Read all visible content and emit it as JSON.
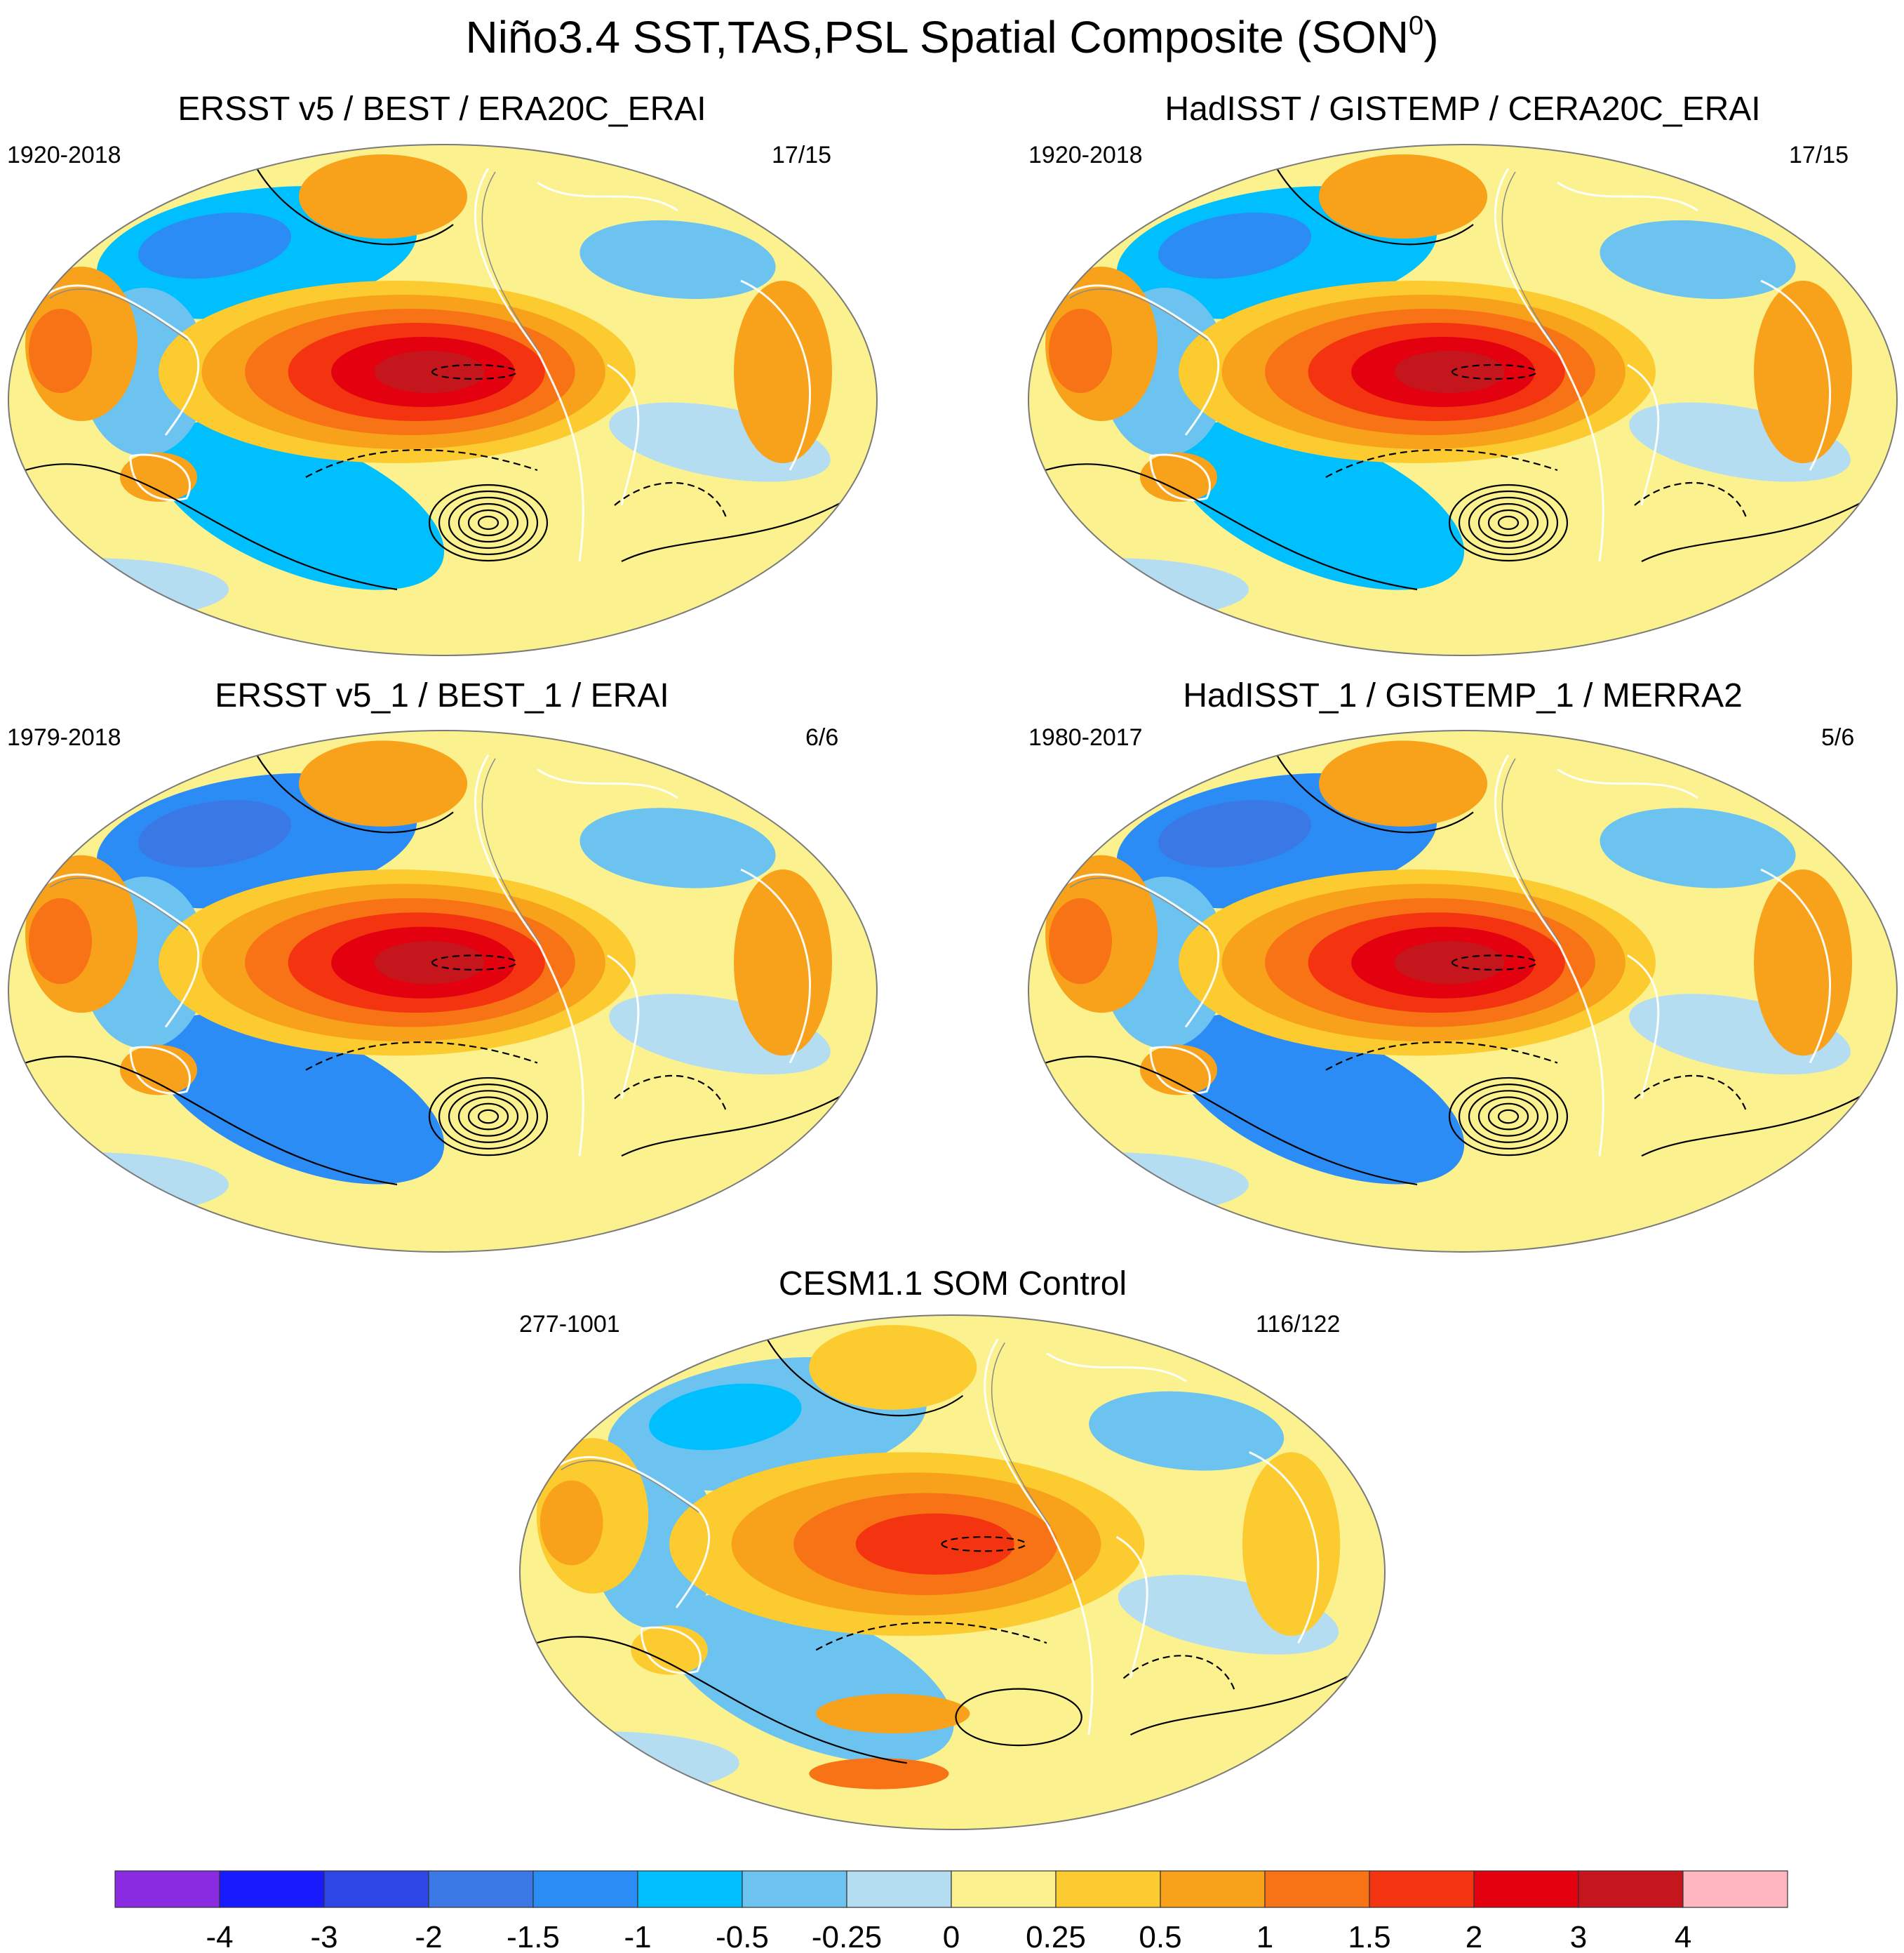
{
  "title": "Niño3.4 SST,TAS,PSL Spatial Composite (SON",
  "title_superscript": "0",
  "title_close": ")",
  "chart_data": {
    "type": "heatmap",
    "title": "Niño3.4 SST,TAS,PSL Spatial Composite (SON0)",
    "projection": "Robinson-like global map, Pacific-centered",
    "field_shaded": "SST / TAS anomaly composite",
    "field_contoured": "PSL anomaly (solid = positive, dashed = negative)",
    "panels": [
      {
        "name": "ERSST v5 / BEST / ERA20C_ERAI",
        "period": "1920-2018",
        "events": "17/15",
        "nino_max": 3,
        "pdo_north": -1,
        "subtropics": 0.5,
        "south_high": true
      },
      {
        "name": "HadISST / GISTEMP / CERA20C_ERAI",
        "period": "1920-2018",
        "events": "17/15",
        "nino_max": 3,
        "pdo_north": -1,
        "subtropics": 0.5,
        "south_high": true
      },
      {
        "name": "ERSST v5_1 / BEST_1 / ERAI",
        "period": "1979-2018",
        "events": "6/6",
        "nino_max": 3,
        "pdo_north": -1.5,
        "subtropics": 0.5,
        "south_high": true
      },
      {
        "name": "HadISST_1 / GISTEMP_1 / MERRA2",
        "period": "1980-2017",
        "events": "5/6",
        "nino_max": 3,
        "pdo_north": -1.5,
        "subtropics": 0.5,
        "south_high": true
      },
      {
        "name": "CESM1.1 SOM Control",
        "period": "277-1001",
        "events": "116/122",
        "nino_max": 1.5,
        "pdo_north": -0.5,
        "subtropics": 0.25,
        "south_high": false
      }
    ],
    "colorbar": {
      "levels": [
        "-4",
        "-3",
        "-2",
        "-1.5",
        "-1",
        "-0.5",
        "-0.25",
        "0",
        "0.25",
        "0.5",
        "1",
        "1.5",
        "2",
        "3",
        "4"
      ],
      "colors": [
        "#8a2be2",
        "#1a1aff",
        "#2c47e6",
        "#3a78e6",
        "#2b8cf5",
        "#00bfff",
        "#6cc3f0",
        "#b4ddf2",
        "#fbf28f",
        "#fccb2f",
        "#f8a11a",
        "#f77316",
        "#f43410",
        "#e3000f",
        "#c4161c",
        "#ffb6c1"
      ],
      "colors_note": "16 color bins bounded by the 15 level labels"
    }
  }
}
